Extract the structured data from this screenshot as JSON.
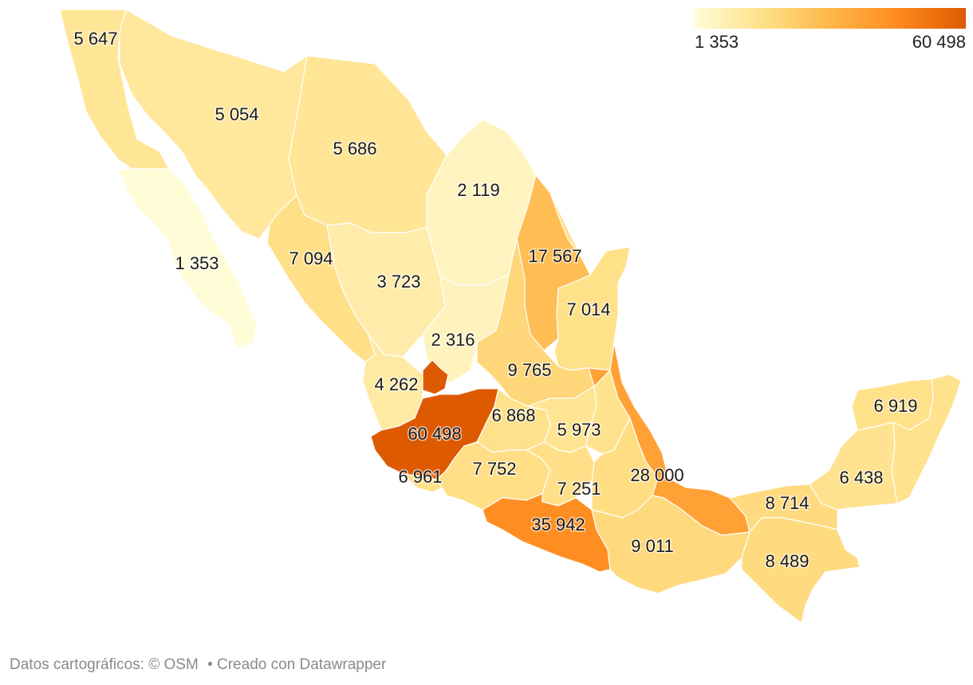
{
  "legend": {
    "min_label": "1 353",
    "max_label": "60 498",
    "min": 1353,
    "max": 60498,
    "colors": [
      "#fffcd8",
      "#ffe088",
      "#ffb64a",
      "#ff8a1e",
      "#dd5a00"
    ]
  },
  "regions": [
    {
      "id": "baja-california",
      "label": "5 647",
      "value": 5647
    },
    {
      "id": "sonora",
      "label": "5 054",
      "value": 5054
    },
    {
      "id": "chihuahua",
      "label": "5 686",
      "value": 5686
    },
    {
      "id": "coahuila",
      "label": "2 119",
      "value": 2119
    },
    {
      "id": "baja-california-sur",
      "label": "1 353",
      "value": 1353
    },
    {
      "id": "sinaloa",
      "label": "7 094",
      "value": 7094
    },
    {
      "id": "durango",
      "label": "3 723",
      "value": 3723
    },
    {
      "id": "nuevo-leon",
      "label": "17 567",
      "value": 17567
    },
    {
      "id": "tamaulipas",
      "label": "7 014",
      "value": 7014
    },
    {
      "id": "zacatecas",
      "label": "2 316",
      "value": 2316
    },
    {
      "id": "san-luis-potosi",
      "label": "9 765",
      "value": 9765
    },
    {
      "id": "nayarit",
      "label": "4 262",
      "value": 4262
    },
    {
      "id": "aguascalientes",
      "label": "",
      "value": 60498
    },
    {
      "id": "jalisco",
      "label": "60 498",
      "value": 60498
    },
    {
      "id": "guanajuato",
      "label": "6 868",
      "value": 6868
    },
    {
      "id": "queretaro",
      "label": "5 973",
      "value": 5973
    },
    {
      "id": "hidalgo",
      "label": "",
      "value": 6500
    },
    {
      "id": "colima",
      "label": "6 961",
      "value": 6961
    },
    {
      "id": "michoacan",
      "label": "7 752",
      "value": 7752
    },
    {
      "id": "mexico",
      "label": "7 251",
      "value": 7251
    },
    {
      "id": "puebla",
      "label": "",
      "value": 8000
    },
    {
      "id": "veracruz",
      "label": "28 000",
      "value": 28000
    },
    {
      "id": "guerrero",
      "label": "35 942",
      "value": 35942
    },
    {
      "id": "oaxaca",
      "label": "9 011",
      "value": 9011
    },
    {
      "id": "tabasco",
      "label": "8 714",
      "value": 8714
    },
    {
      "id": "chiapas",
      "label": "8 489",
      "value": 8489
    },
    {
      "id": "campeche",
      "label": "6 438",
      "value": 6438
    },
    {
      "id": "yucatan",
      "label": "6 919",
      "value": 6919
    },
    {
      "id": "quintana-roo",
      "label": "",
      "value": 6600
    }
  ],
  "footer": {
    "attribution": "Datos cartográficos: © OSM",
    "credit": "• Creado con Datawrapper"
  }
}
